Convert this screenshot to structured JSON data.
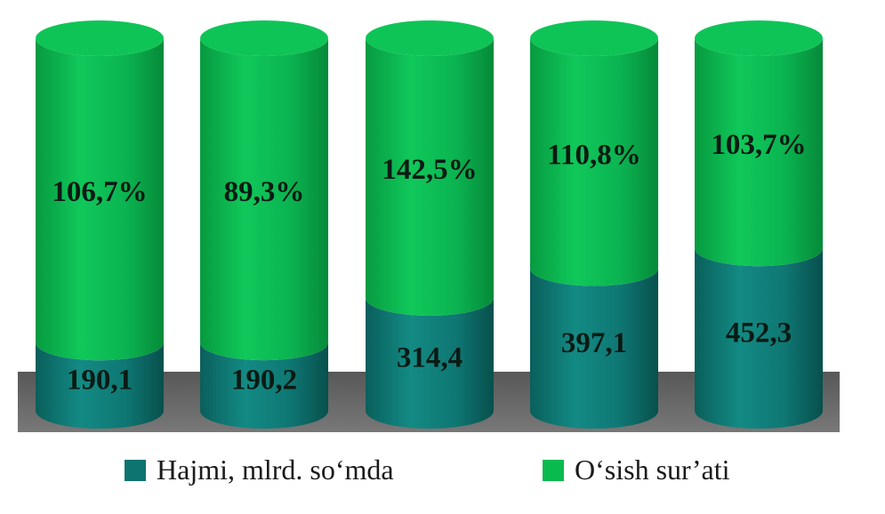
{
  "chart_data": {
    "type": "bar",
    "stacked": true,
    "style": "3d-cylinder",
    "categories": [
      "",
      "",
      "",
      "",
      ""
    ],
    "series": [
      {
        "name": "Hajmi, mlrd. so‘mda",
        "values": [
          190.1,
          190.2,
          314.4,
          397.1,
          452.3
        ],
        "labels": [
          "190,1",
          "190,2",
          "314,4",
          "397,1",
          "452,3"
        ]
      },
      {
        "name": "O‘sish sur’ati",
        "values": [
          106.7,
          89.3,
          142.5,
          110.8,
          103.7
        ],
        "labels": [
          "106,7%",
          "89,3%",
          "142,5%",
          "110,8%",
          "103,7%"
        ]
      }
    ],
    "legend": {
      "position": "bottom"
    },
    "grid": false
  },
  "colors": {
    "volume": "#0e7470",
    "growth": "#0aba4f",
    "floor": "#6b6b6b"
  }
}
